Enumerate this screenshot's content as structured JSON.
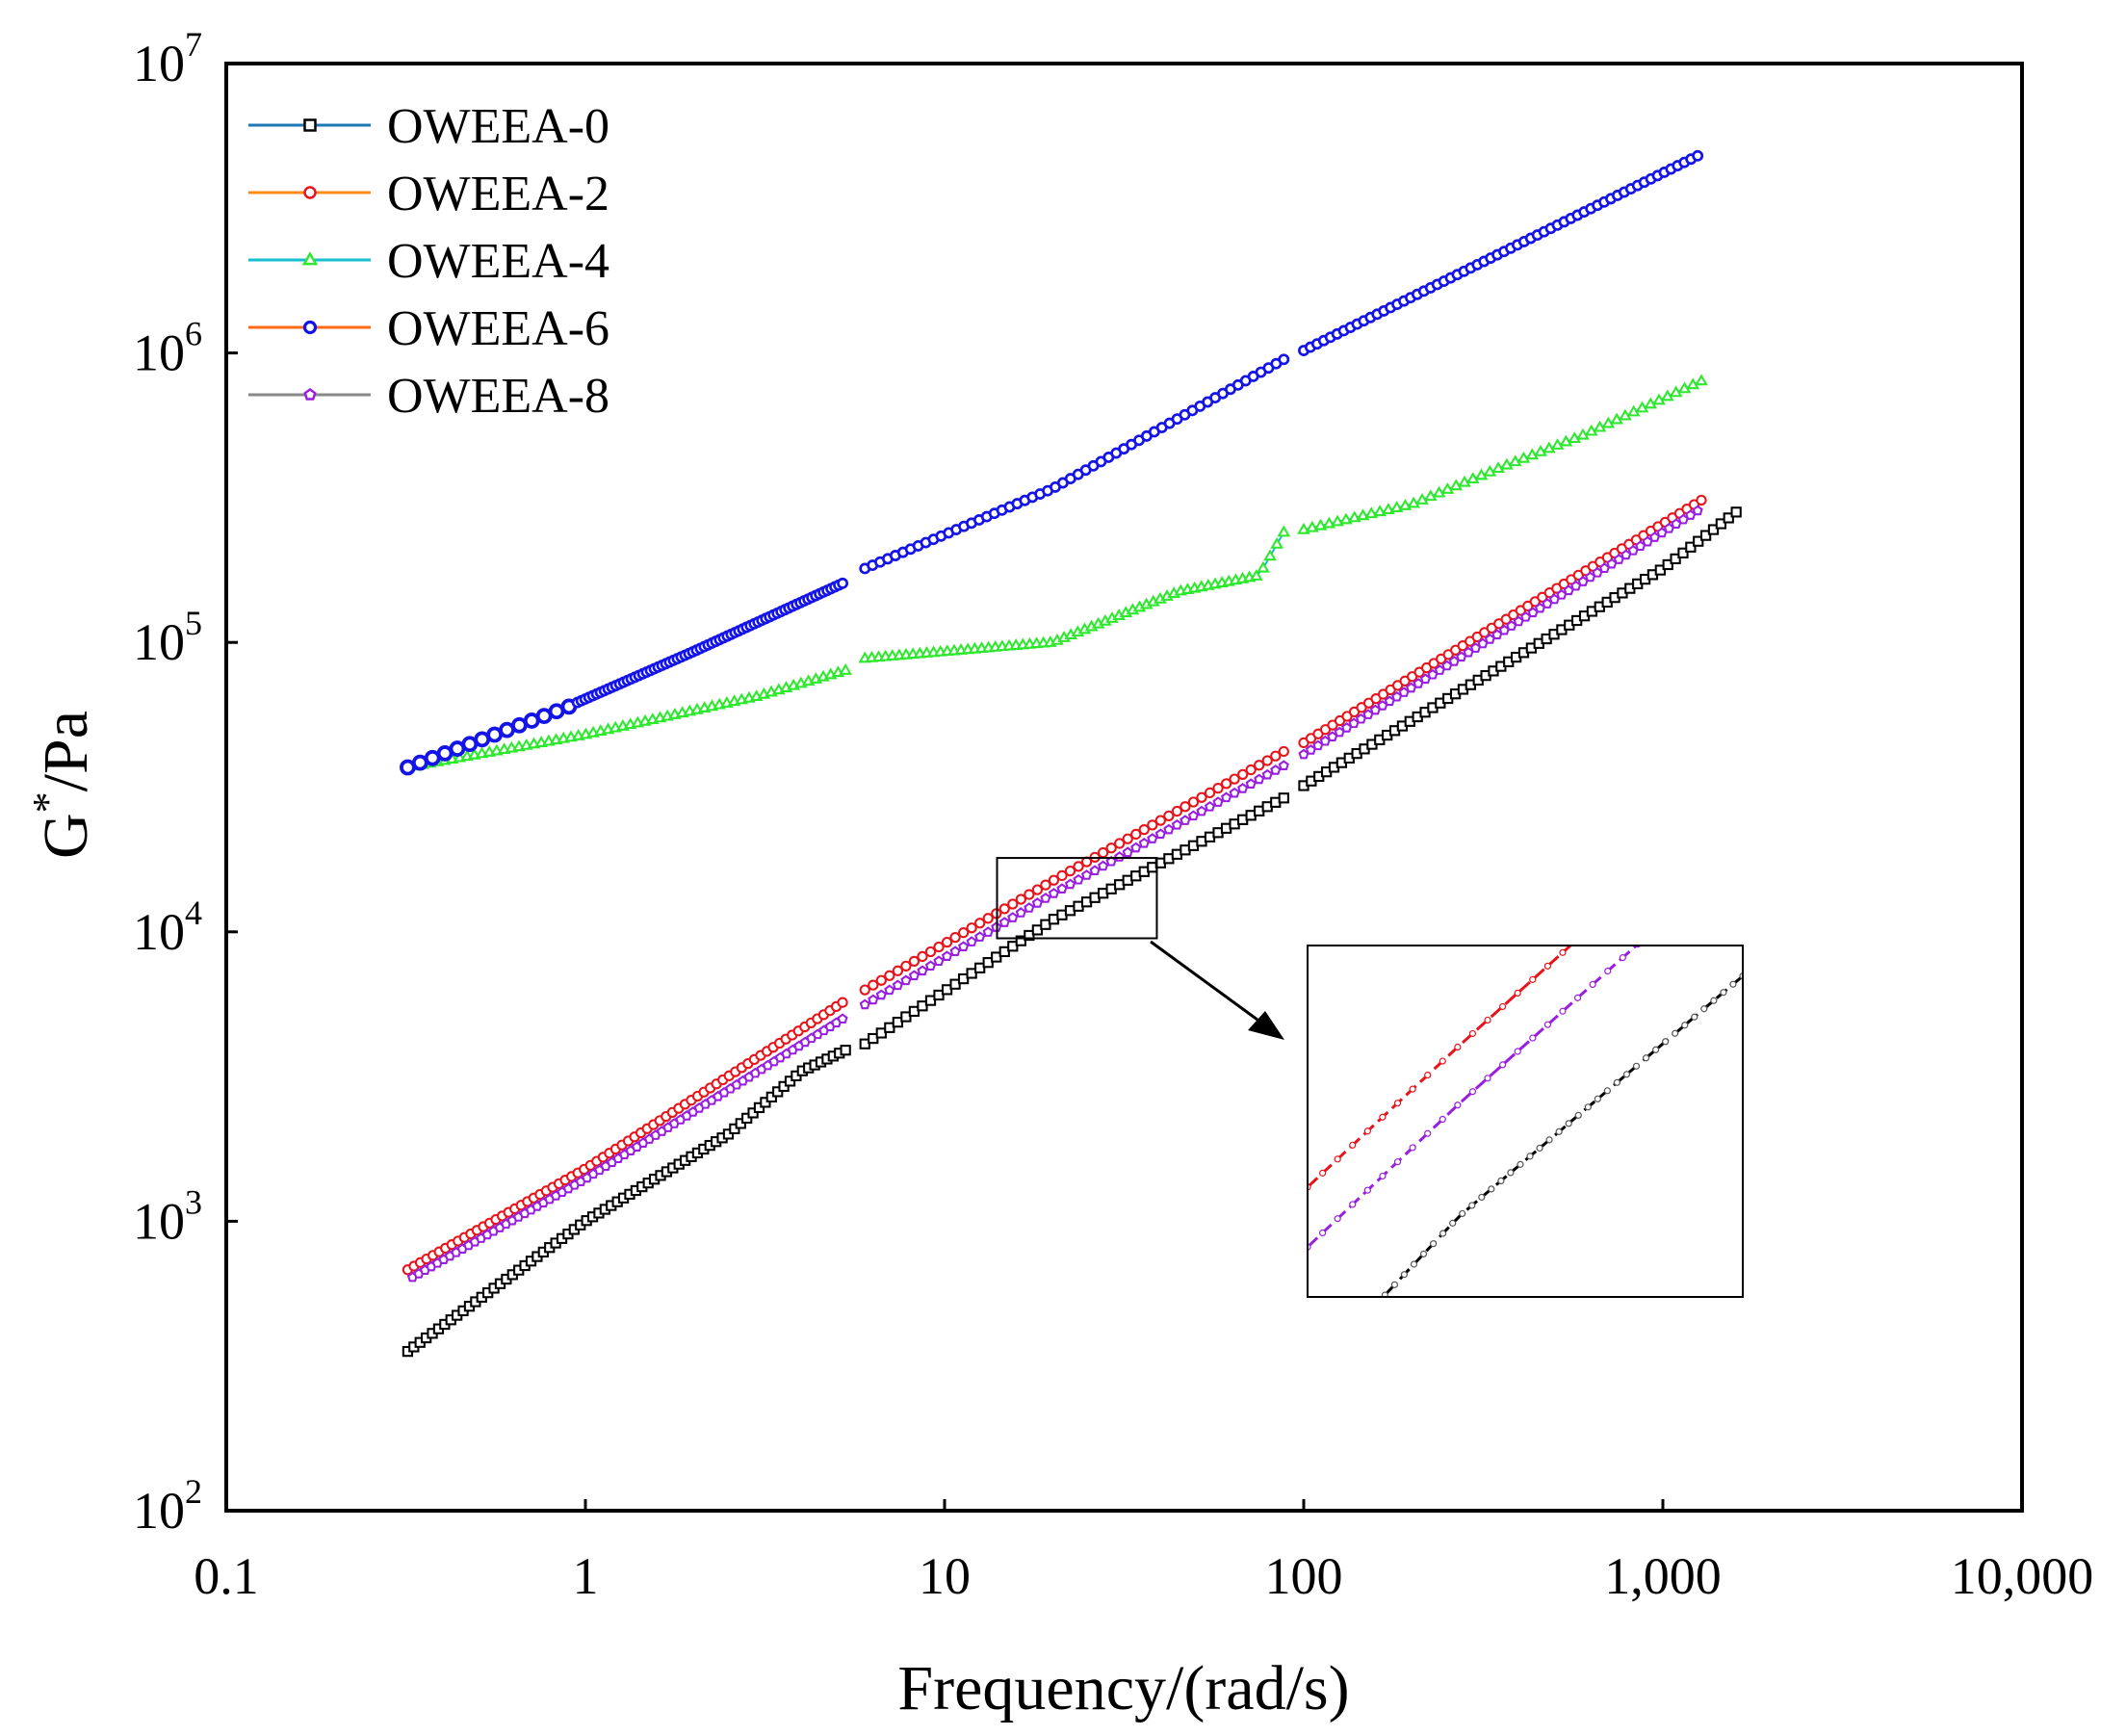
{
  "chart_data": {
    "type": "scatter",
    "title": "",
    "xlabel": "Frequency/(rad/s)",
    "ylabel_base": "G",
    "ylabel_sup": "*",
    "ylabel_unit": "/Pa",
    "xscale": "log",
    "yscale": "log",
    "xlim": [
      0.1,
      10000
    ],
    "ylim": [
      100,
      10000000
    ],
    "x_ticks": [
      {
        "value": 0.1,
        "label": "0.1"
      },
      {
        "value": 1,
        "label": "1"
      },
      {
        "value": 10,
        "label": "10"
      },
      {
        "value": 100,
        "label": "100"
      },
      {
        "value": 1000,
        "label": "1,000"
      },
      {
        "value": 10000,
        "label": "10,000"
      }
    ],
    "y_ticks": [
      {
        "value": 100,
        "base": "10",
        "exp": "2"
      },
      {
        "value": 1000,
        "base": "10",
        "exp": "3"
      },
      {
        "value": 10000,
        "base": "10",
        "exp": "4"
      },
      {
        "value": 100000,
        "base": "10",
        "exp": "5"
      },
      {
        "value": 1000000,
        "base": "10",
        "exp": "6"
      },
      {
        "value": 10000000,
        "base": "10",
        "exp": "7"
      }
    ],
    "legend_position": "top-left",
    "series": [
      {
        "name": "OWEEA-0",
        "marker": "square",
        "color": "#000000",
        "line_color": "#1f77b4",
        "segments": [
          {
            "x0": 0.32,
            "x1": 5.3,
            "n": 72,
            "pts": [
              [
                0.32,
                355
              ],
              [
                1,
                1000
              ],
              [
                2.5,
                2000
              ],
              [
                4,
                3300
              ],
              [
                5.3,
                3900
              ]
            ]
          },
          {
            "x0": 6,
            "x1": 88,
            "n": 52,
            "pts": [
              [
                6,
                4100
              ],
              [
                20,
                11000
              ],
              [
                88,
                29000
              ]
            ]
          },
          {
            "x0": 100,
            "x1": 1600,
            "n": 58,
            "pts": [
              [
                100,
                32000
              ],
              [
                1000,
                180000
              ],
              [
                1600,
                282000
              ]
            ]
          }
        ]
      },
      {
        "name": "OWEEA-2",
        "marker": "circle",
        "color": "#e8141b",
        "line_color": "#ff8c1a",
        "segments": [
          {
            "x0": 0.32,
            "x1": 5.2,
            "n": 70,
            "pts": [
              [
                0.32,
                680
              ],
              [
                1,
                1520
              ],
              [
                5.2,
                5700
              ]
            ]
          },
          {
            "x0": 6,
            "x1": 88,
            "n": 52,
            "pts": [
              [
                6,
                6300
              ],
              [
                20,
                15000
              ],
              [
                88,
                42000
              ]
            ]
          },
          {
            "x0": 100,
            "x1": 1280,
            "n": 56,
            "pts": [
              [
                100,
                45000
              ],
              [
                1280,
                310000
              ]
            ]
          }
        ]
      },
      {
        "name": "OWEEA-4",
        "marker": "triangle",
        "color": "#2ee82e",
        "line_color": "#17becf",
        "segments": [
          {
            "x0": 0.32,
            "x1": 5.3,
            "n": 60,
            "pts": [
              [
                0.32,
                37000
              ],
              [
                1,
                48000
              ],
              [
                3,
                65000
              ],
              [
                5.3,
                80000
              ]
            ]
          },
          {
            "x0": 6,
            "x1": 88,
            "n": 62,
            "pts": [
              [
                6,
                88000
              ],
              [
                20,
                100000
              ],
              [
                45,
                150000
              ],
              [
                75,
                170000
              ],
              [
                88,
                240000
              ]
            ]
          },
          {
            "x0": 100,
            "x1": 1280,
            "n": 48,
            "pts": [
              [
                100,
                245000
              ],
              [
                200,
                300000
              ],
              [
                350,
                400000
              ],
              [
                600,
                520000
              ],
              [
                1280,
                800000
              ]
            ]
          }
        ]
      },
      {
        "name": "OWEEA-6",
        "marker": "circle-fill",
        "color": "#1414e8",
        "line_color": "#ff6a13",
        "segments": [
          {
            "x0": 0.32,
            "x1": 0.9,
            "n": 14,
            "big": true,
            "pts": [
              [
                0.32,
                37000
              ],
              [
                0.9,
                60000
              ]
            ]
          },
          {
            "x0": 0.95,
            "x1": 5.2,
            "n": 70,
            "pts": [
              [
                0.95,
                62000
              ],
              [
                2,
                93000
              ],
              [
                5.2,
                160000
              ]
            ]
          },
          {
            "x0": 6,
            "x1": 88,
            "n": 56,
            "pts": [
              [
                6,
                180000
              ],
              [
                20,
                340000
              ],
              [
                88,
                950000
              ]
            ]
          },
          {
            "x0": 100,
            "x1": 1250,
            "n": 60,
            "pts": [
              [
                100,
                1020000
              ],
              [
                1250,
                4800000
              ]
            ]
          }
        ]
      },
      {
        "name": "OWEEA-8",
        "marker": "pentagon",
        "color": "#9a1ee0",
        "line_color": "#888888",
        "segments": [
          {
            "x0": 0.33,
            "x1": 5.2,
            "n": 70,
            "pts": [
              [
                0.33,
                640
              ],
              [
                1,
                1400
              ],
              [
                5.2,
                5000
              ]
            ]
          },
          {
            "x0": 6,
            "x1": 88,
            "n": 52,
            "pts": [
              [
                6,
                5600
              ],
              [
                20,
                13500
              ],
              [
                88,
                37500
              ]
            ]
          },
          {
            "x0": 100,
            "x1": 1250,
            "n": 56,
            "pts": [
              [
                100,
                41000
              ],
              [
                1250,
                285000
              ]
            ]
          }
        ]
      }
    ],
    "zoom_source": {
      "x": [
        14,
        39
      ],
      "y": [
        9500,
        18000
      ]
    },
    "inset_series": [
      "OWEEA-2",
      "OWEEA-8",
      "OWEEA-0"
    ]
  }
}
